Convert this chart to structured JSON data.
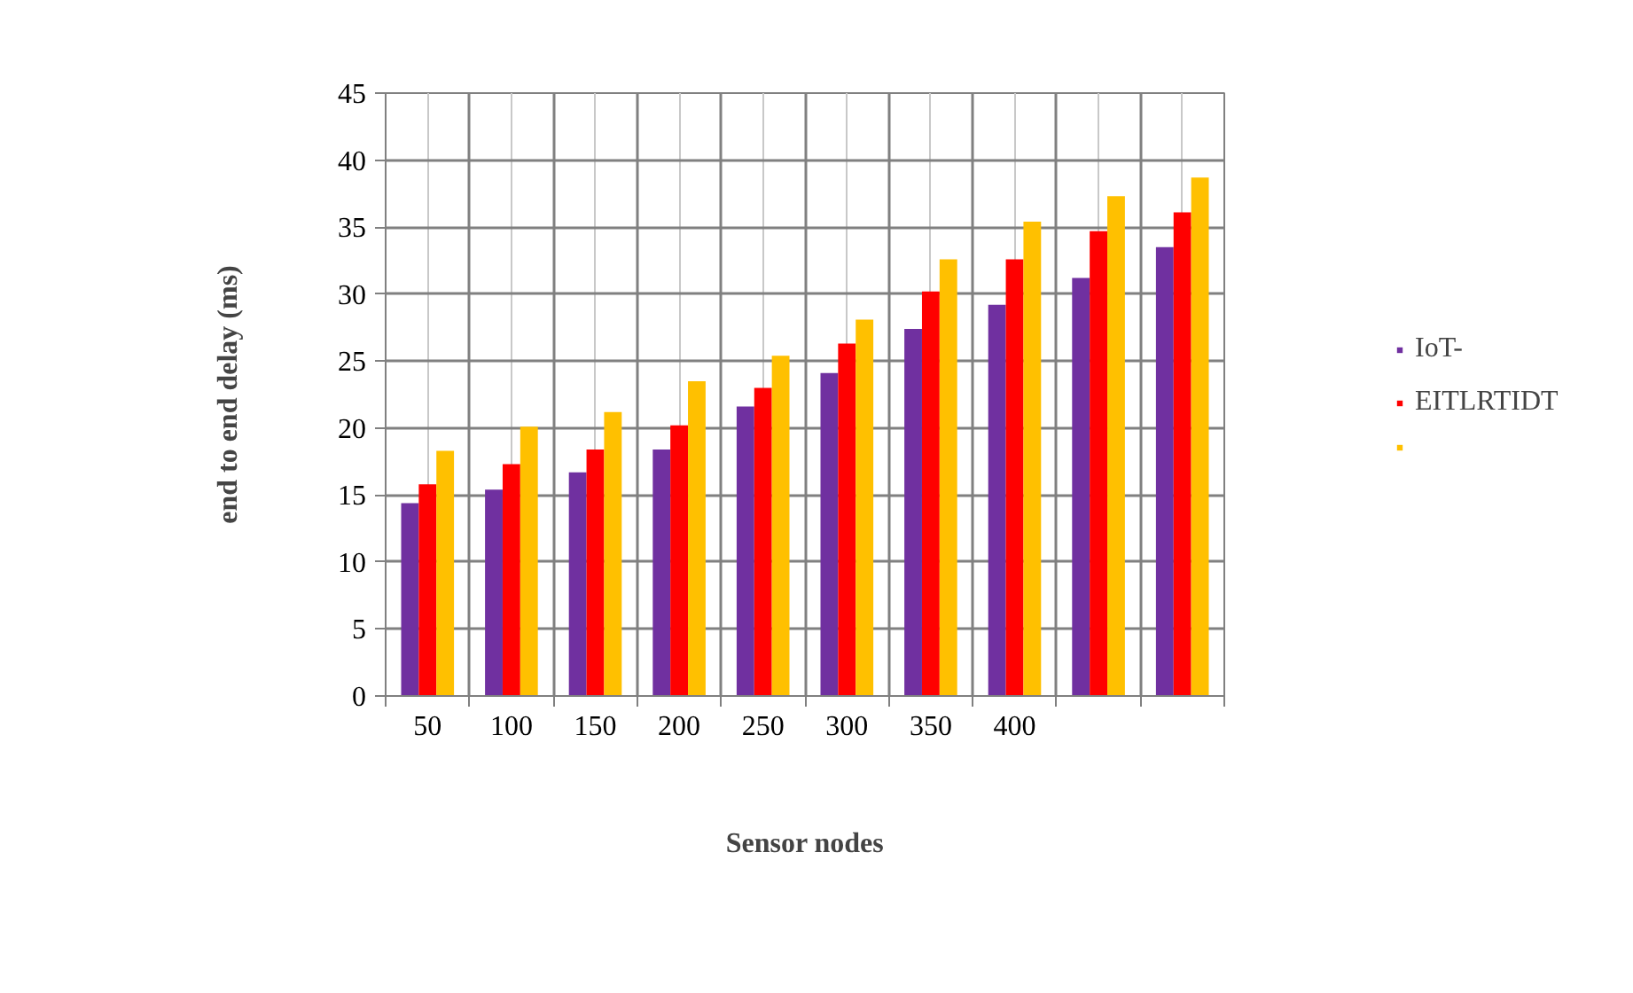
{
  "chart_data": {
    "type": "bar",
    "xlabel": "Sensor nodes",
    "ylabel": "end to end delay (ms)",
    "categories": [
      "50",
      "100",
      "150",
      "200",
      "250",
      "300",
      "350",
      "400",
      null,
      null
    ],
    "series": [
      {
        "name": "IoT-",
        "color": "#7030a0",
        "values": [
          14.4,
          15.4,
          16.7,
          18.4,
          21.6,
          24.1,
          27.4,
          29.2,
          31.2,
          33.5
        ]
      },
      {
        "name": "EITLRTIDT",
        "color": "#ff0000",
        "values": [
          15.8,
          17.3,
          18.4,
          20.2,
          23.0,
          26.3,
          30.2,
          32.6,
          34.7,
          36.1
        ]
      },
      {
        "color": "#ffc000",
        "values": [
          18.3,
          20.1,
          21.2,
          23.5,
          25.4,
          28.1,
          32.6,
          35.4,
          37.3,
          38.7
        ]
      }
    ],
    "ylim": [
      0,
      45
    ],
    "yticks": [
      0,
      5,
      10,
      15,
      20,
      25,
      30,
      35,
      40,
      45
    ],
    "grid": true,
    "legend": "right"
  }
}
